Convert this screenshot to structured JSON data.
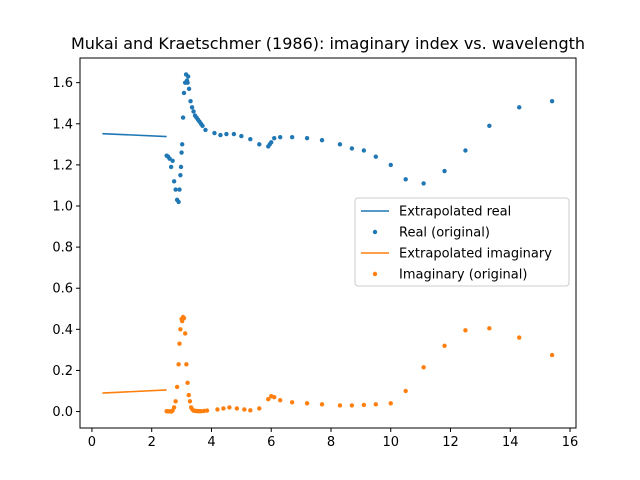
{
  "chart_data": {
    "type": "scatter",
    "title": "Mukai and Kraetschmer (1986): imaginary index vs. wavelength",
    "xlabel": "",
    "ylabel": "",
    "xlim": [
      -0.4,
      16.2
    ],
    "ylim": [
      -0.08,
      1.72
    ],
    "x_ticks": [
      0,
      2,
      4,
      6,
      8,
      10,
      12,
      14,
      16
    ],
    "y_ticks": [
      0.0,
      0.2,
      0.4,
      0.6,
      0.8,
      1.0,
      1.2,
      1.4,
      1.6
    ],
    "grid": false,
    "legend_position": "center-right",
    "series": [
      {
        "name": "Extrapolated real",
        "kind": "line",
        "color": "#1f77b4",
        "points": [
          [
            0.35,
            1.352
          ],
          [
            2.5,
            1.338
          ]
        ]
      },
      {
        "name": "Real (original)",
        "kind": "scatter",
        "color": "#1f77b4",
        "points": [
          [
            2.5,
            1.245
          ],
          [
            2.55,
            1.24
          ],
          [
            2.6,
            1.23
          ],
          [
            2.65,
            1.19
          ],
          [
            2.7,
            1.22
          ],
          [
            2.75,
            1.12
          ],
          [
            2.8,
            1.08
          ],
          [
            2.85,
            1.03
          ],
          [
            2.9,
            1.02
          ],
          [
            2.93,
            1.08
          ],
          [
            2.96,
            1.15
          ],
          [
            2.98,
            1.19
          ],
          [
            3.0,
            1.26
          ],
          [
            3.02,
            1.3
          ],
          [
            3.05,
            1.43
          ],
          [
            3.08,
            1.55
          ],
          [
            3.12,
            1.6
          ],
          [
            3.15,
            1.64
          ],
          [
            3.18,
            1.61
          ],
          [
            3.2,
            1.6
          ],
          [
            3.22,
            1.63
          ],
          [
            3.25,
            1.57
          ],
          [
            3.3,
            1.51
          ],
          [
            3.35,
            1.48
          ],
          [
            3.4,
            1.46
          ],
          [
            3.45,
            1.44
          ],
          [
            3.5,
            1.43
          ],
          [
            3.55,
            1.42
          ],
          [
            3.6,
            1.41
          ],
          [
            3.65,
            1.4
          ],
          [
            3.7,
            1.39
          ],
          [
            3.8,
            1.37
          ],
          [
            4.1,
            1.355
          ],
          [
            4.3,
            1.345
          ],
          [
            4.5,
            1.35
          ],
          [
            4.75,
            1.35
          ],
          [
            5.0,
            1.34
          ],
          [
            5.3,
            1.325
          ],
          [
            5.6,
            1.3
          ],
          [
            5.9,
            1.29
          ],
          [
            5.95,
            1.3
          ],
          [
            6.0,
            1.31
          ],
          [
            6.1,
            1.33
          ],
          [
            6.3,
            1.335
          ],
          [
            6.7,
            1.335
          ],
          [
            7.2,
            1.33
          ],
          [
            7.7,
            1.32
          ],
          [
            8.3,
            1.3
          ],
          [
            8.7,
            1.28
          ],
          [
            9.1,
            1.27
          ],
          [
            9.5,
            1.24
          ],
          [
            10.0,
            1.2
          ],
          [
            10.5,
            1.13
          ],
          [
            11.1,
            1.11
          ],
          [
            11.8,
            1.17
          ],
          [
            12.5,
            1.27
          ],
          [
            13.3,
            1.39
          ],
          [
            14.3,
            1.48
          ],
          [
            15.4,
            1.51
          ]
        ]
      },
      {
        "name": "Extrapolated imaginary",
        "kind": "line",
        "color": "#ff7f0e",
        "points": [
          [
            0.35,
            0.09
          ],
          [
            2.5,
            0.105
          ]
        ]
      },
      {
        "name": "Imaginary (original)",
        "kind": "scatter",
        "color": "#ff7f0e",
        "points": [
          [
            2.5,
            0.002
          ],
          [
            2.55,
            0.001
          ],
          [
            2.6,
            0.001
          ],
          [
            2.65,
            0.0
          ],
          [
            2.7,
            0.005
          ],
          [
            2.75,
            0.02
          ],
          [
            2.8,
            0.05
          ],
          [
            2.85,
            0.12
          ],
          [
            2.9,
            0.23
          ],
          [
            2.93,
            0.33
          ],
          [
            2.96,
            0.4
          ],
          [
            3.0,
            0.45
          ],
          [
            3.02,
            0.44
          ],
          [
            3.05,
            0.46
          ],
          [
            3.08,
            0.455
          ],
          [
            3.12,
            0.38
          ],
          [
            3.16,
            0.23
          ],
          [
            3.2,
            0.14
          ],
          [
            3.24,
            0.08
          ],
          [
            3.28,
            0.05
          ],
          [
            3.32,
            0.02
          ],
          [
            3.36,
            0.01
          ],
          [
            3.4,
            0.005
          ],
          [
            3.45,
            0.003
          ],
          [
            3.5,
            0.003
          ],
          [
            3.55,
            0.002
          ],
          [
            3.6,
            0.002
          ],
          [
            3.65,
            0.002
          ],
          [
            3.75,
            0.003
          ],
          [
            3.85,
            0.005
          ],
          [
            4.2,
            0.01
          ],
          [
            4.4,
            0.015
          ],
          [
            4.6,
            0.02
          ],
          [
            4.85,
            0.015
          ],
          [
            5.1,
            0.01
          ],
          [
            5.3,
            0.006
          ],
          [
            5.6,
            0.015
          ],
          [
            5.9,
            0.06
          ],
          [
            6.0,
            0.075
          ],
          [
            6.1,
            0.07
          ],
          [
            6.3,
            0.055
          ],
          [
            6.7,
            0.045
          ],
          [
            7.2,
            0.04
          ],
          [
            7.7,
            0.035
          ],
          [
            8.3,
            0.03
          ],
          [
            8.7,
            0.03
          ],
          [
            9.1,
            0.032
          ],
          [
            9.5,
            0.035
          ],
          [
            10.0,
            0.04
          ],
          [
            10.5,
            0.1
          ],
          [
            11.1,
            0.215
          ],
          [
            11.8,
            0.32
          ],
          [
            12.5,
            0.395
          ],
          [
            13.3,
            0.405
          ],
          [
            14.3,
            0.36
          ],
          [
            15.4,
            0.275
          ]
        ]
      }
    ]
  }
}
